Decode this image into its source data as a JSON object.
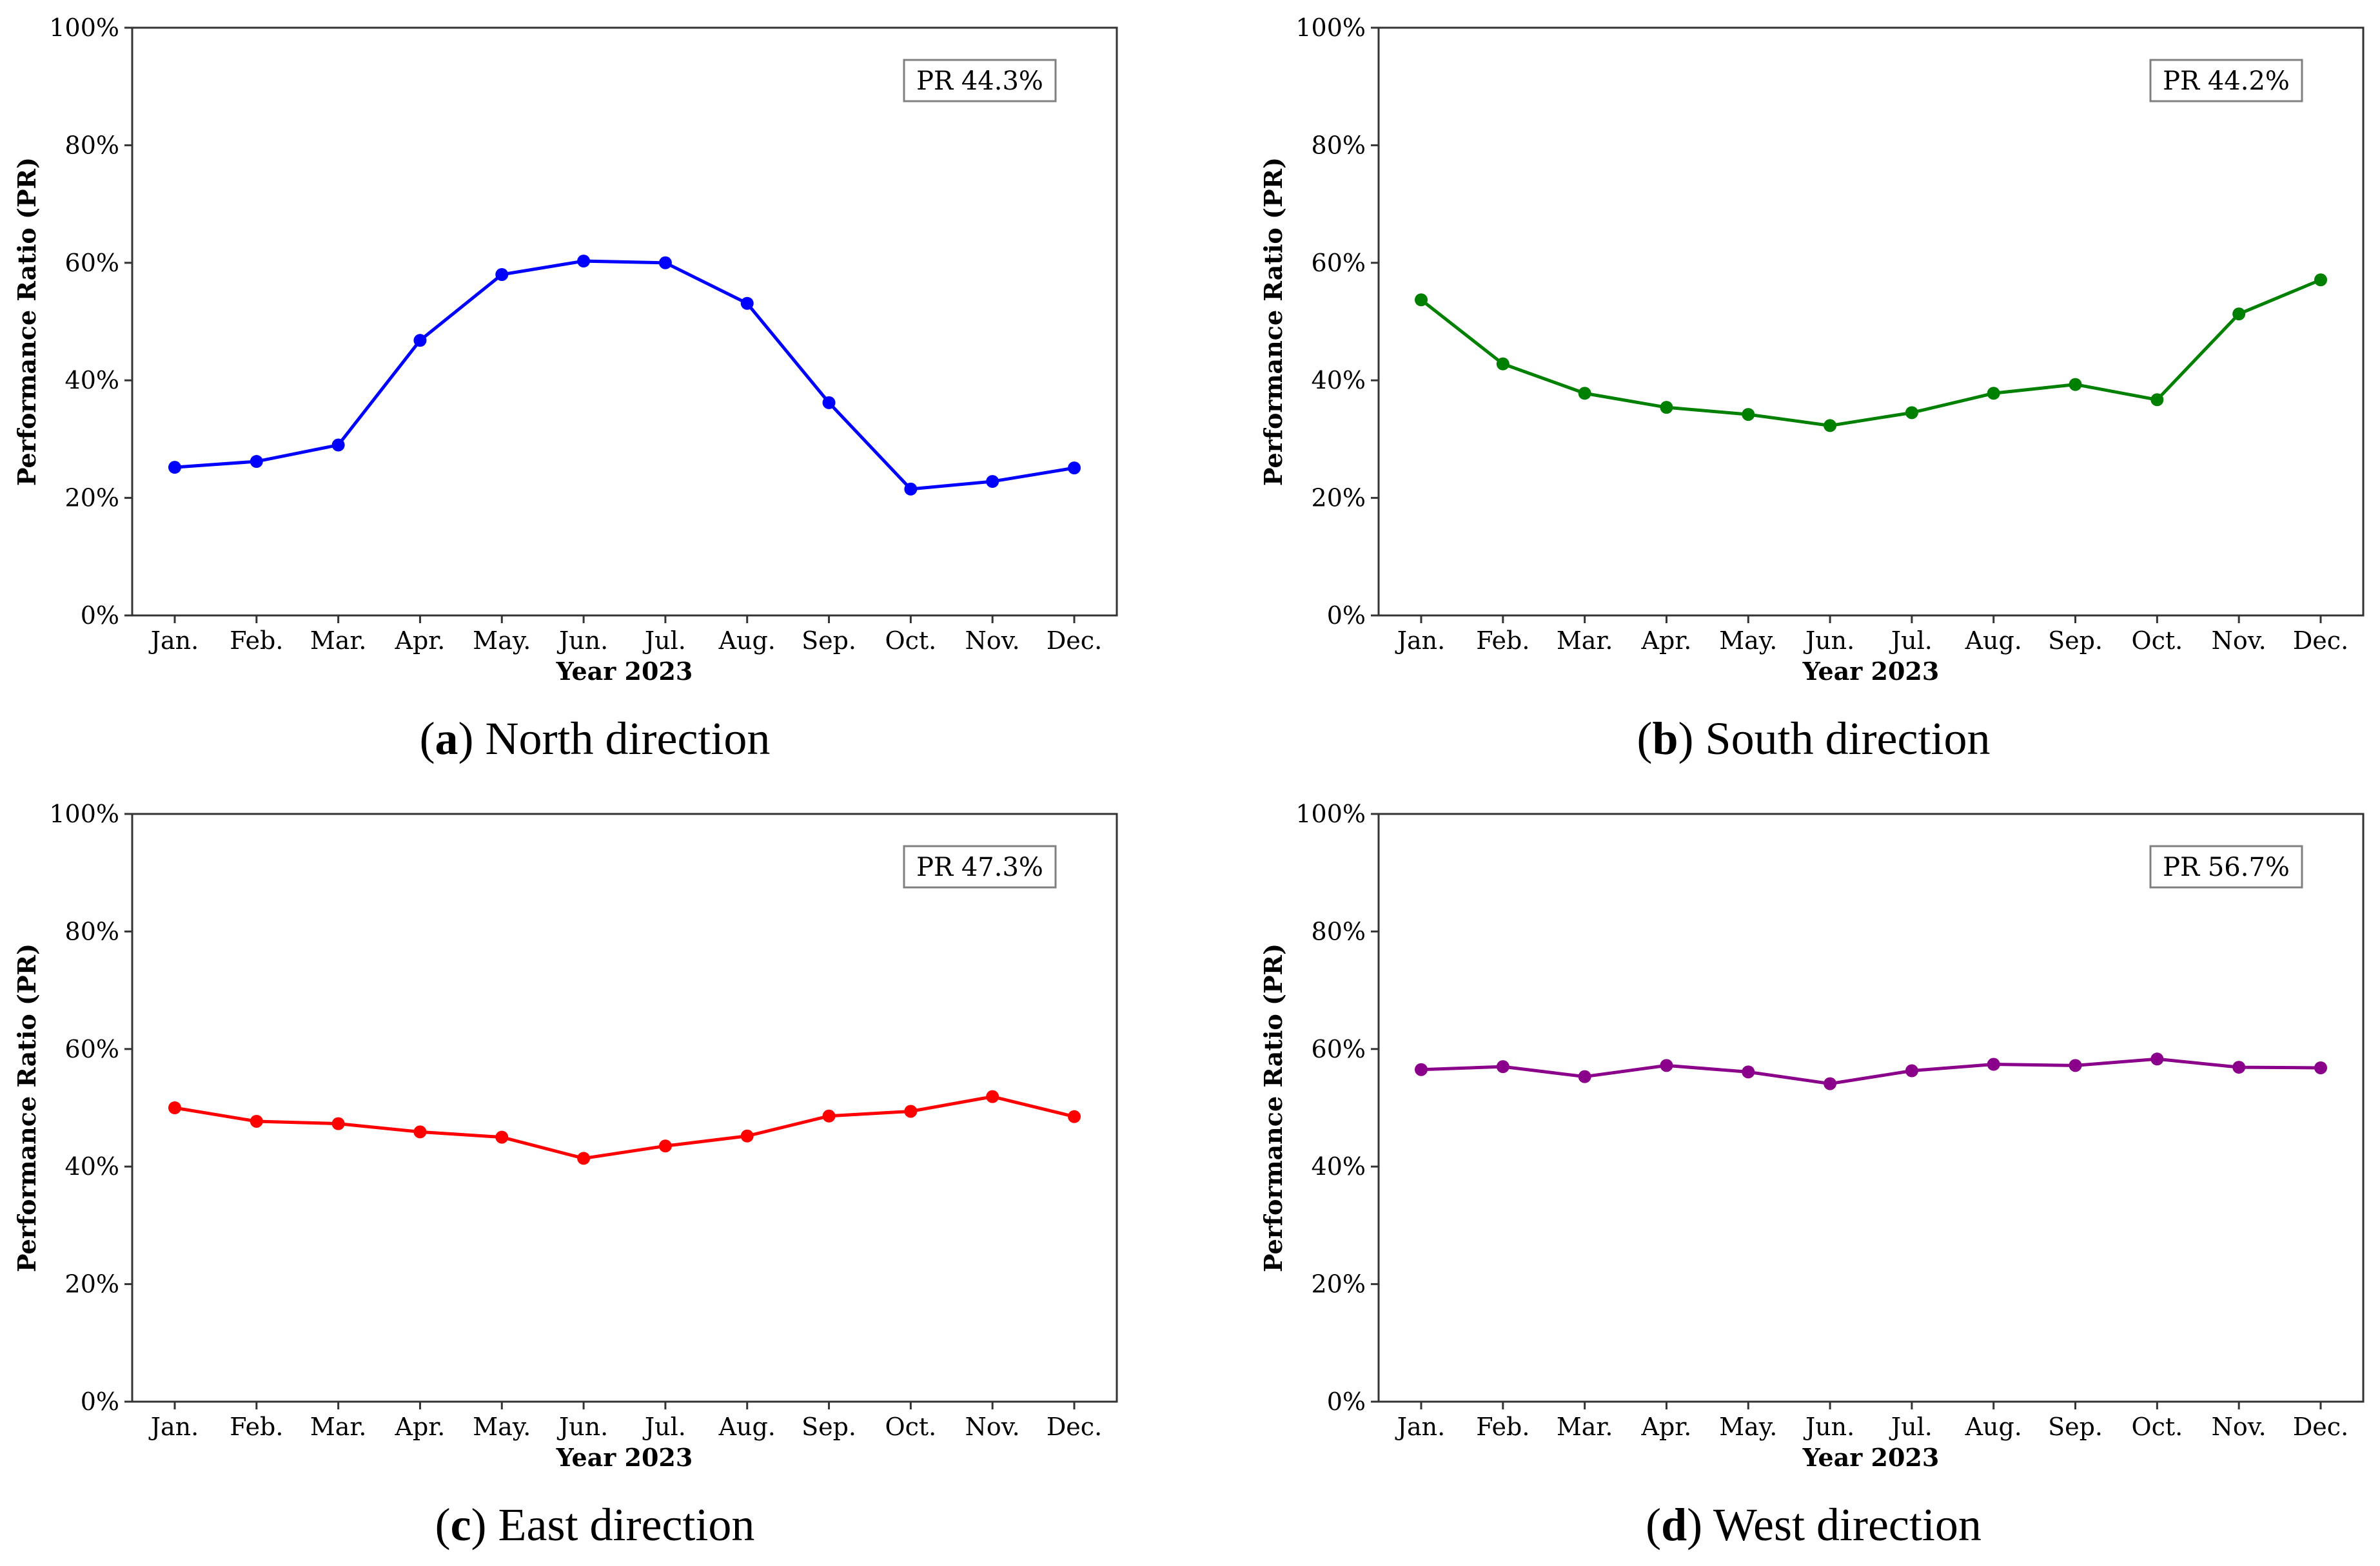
{
  "figure": {
    "charts": [
      {
        "id": "a",
        "caption_letter": "a",
        "caption_text": "North direction",
        "color": "#0000ff",
        "pr_label": "PR 44.3%"
      },
      {
        "id": "b",
        "caption_letter": "b",
        "caption_text": "South direction",
        "color": "#008000",
        "pr_label": "PR 44.2%"
      },
      {
        "id": "c",
        "caption_letter": "c",
        "caption_text": "East direction",
        "color": "#ff0000",
        "pr_label": "PR 47.3%"
      },
      {
        "id": "d",
        "caption_letter": "d",
        "caption_text": "West direction",
        "color": "#8b008b",
        "pr_label": "PR 56.7%"
      }
    ]
  },
  "chart_data": [
    {
      "type": "line",
      "title": "North direction",
      "xlabel": "Year 2023",
      "ylabel": "Performance Ratio (PR)",
      "categories": [
        "Jan.",
        "Feb.",
        "Mar.",
        "Apr.",
        "May.",
        "Jun.",
        "Jul.",
        "Aug.",
        "Sep.",
        "Oct.",
        "Nov.",
        "Dec."
      ],
      "yticks": [
        "0%",
        "20%",
        "40%",
        "60%",
        "80%",
        "100%"
      ],
      "ylim": [
        0,
        100
      ],
      "grid": false,
      "annotation": "PR 44.3%",
      "series": [
        {
          "name": "North",
          "values": [
            25.2,
            26.2,
            29.0,
            46.8,
            58.0,
            60.3,
            60.0,
            53.1,
            36.2,
            21.5,
            22.8,
            25.1
          ]
        }
      ]
    },
    {
      "type": "line",
      "title": "South direction",
      "xlabel": "Year 2023",
      "ylabel": "Performance Ratio (PR)",
      "categories": [
        "Jan.",
        "Feb.",
        "Mar.",
        "Apr.",
        "May.",
        "Jun.",
        "Jul.",
        "Aug.",
        "Sep.",
        "Oct.",
        "Nov.",
        "Dec."
      ],
      "yticks": [
        "0%",
        "20%",
        "40%",
        "60%",
        "80%",
        "100%"
      ],
      "ylim": [
        0,
        100
      ],
      "grid": false,
      "annotation": "PR 44.2%",
      "series": [
        {
          "name": "South",
          "values": [
            53.7,
            42.8,
            37.8,
            35.4,
            34.2,
            32.3,
            34.5,
            37.8,
            39.3,
            36.7,
            51.3,
            57.1
          ]
        }
      ]
    },
    {
      "type": "line",
      "title": "East direction",
      "xlabel": "Year 2023",
      "ylabel": "Performance Ratio (PR)",
      "categories": [
        "Jan.",
        "Feb.",
        "Mar.",
        "Apr.",
        "May.",
        "Jun.",
        "Jul.",
        "Aug.",
        "Sep.",
        "Oct.",
        "Nov.",
        "Dec."
      ],
      "yticks": [
        "0%",
        "20%",
        "40%",
        "60%",
        "80%",
        "100%"
      ],
      "ylim": [
        0,
        100
      ],
      "grid": false,
      "annotation": "PR 47.3%",
      "series": [
        {
          "name": "East",
          "values": [
            50.0,
            47.7,
            47.3,
            45.9,
            45.0,
            41.4,
            43.5,
            45.2,
            48.6,
            49.4,
            51.9,
            48.5
          ]
        }
      ]
    },
    {
      "type": "line",
      "title": "West direction",
      "xlabel": "Year 2023",
      "ylabel": "Performance Ratio (PR)",
      "categories": [
        "Jan.",
        "Feb.",
        "Mar.",
        "Apr.",
        "May.",
        "Jun.",
        "Jul.",
        "Aug.",
        "Sep.",
        "Oct.",
        "Nov.",
        "Dec."
      ],
      "yticks": [
        "0%",
        "20%",
        "40%",
        "60%",
        "80%",
        "100%"
      ],
      "ylim": [
        0,
        100
      ],
      "grid": false,
      "annotation": "PR 56.7%",
      "series": [
        {
          "name": "West",
          "values": [
            56.5,
            57.0,
            55.3,
            57.2,
            56.1,
            54.1,
            56.3,
            57.4,
            57.2,
            58.3,
            56.9,
            56.8
          ]
        }
      ]
    }
  ]
}
